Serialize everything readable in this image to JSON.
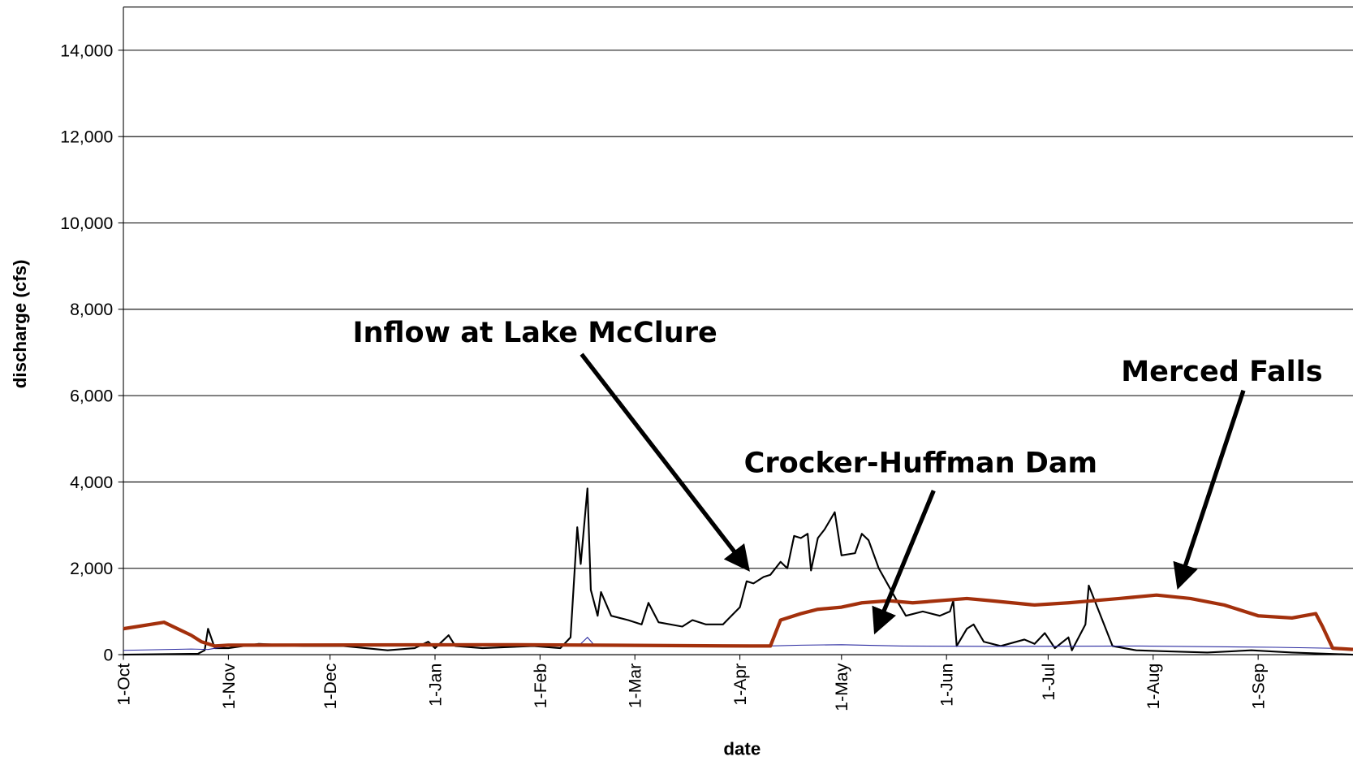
{
  "chart_data": {
    "type": "line",
    "xlabel": "date",
    "ylabel": "discharge (cfs)",
    "xlim": [
      0,
      363
    ],
    "xticks": [
      {
        "value": 0,
        "label": "1-Oct"
      },
      {
        "value": 31,
        "label": "1-Nov"
      },
      {
        "value": 61,
        "label": "1-Dec"
      },
      {
        "value": 92,
        "label": "1-Jan"
      },
      {
        "value": 123,
        "label": "1-Feb"
      },
      {
        "value": 151,
        "label": "1-Mar"
      },
      {
        "value": 182,
        "label": "1-Apr"
      },
      {
        "value": 212,
        "label": "1-May"
      },
      {
        "value": 243,
        "label": "1-Jun"
      },
      {
        "value": 273,
        "label": "1-Jul"
      },
      {
        "value": 304,
        "label": "1-Aug"
      },
      {
        "value": 335,
        "label": "1-Sep"
      }
    ],
    "ylim": [
      0,
      15000
    ],
    "yticks": [
      0,
      {
        "value": 2000,
        "label": "2,000"
      },
      {
        "value": 4000,
        "label": "4,000"
      },
      {
        "value": 6000,
        "label": "6,000"
      },
      {
        "value": 8000,
        "label": "8,000"
      },
      {
        "value": 10000,
        "label": "10,000"
      },
      {
        "value": 12000,
        "label": "12,000"
      },
      {
        "value": 14000,
        "label": "14,000"
      }
    ],
    "grid": true,
    "series": [
      {
        "name": "Inflow at Lake McClure",
        "color": "#000000",
        "width": 2,
        "x": [
          0,
          22,
          24,
          25,
          27,
          31,
          40,
          53,
          65,
          78,
          86,
          90,
          92,
          96,
          98,
          106,
          121,
          129,
          132,
          134,
          135,
          137,
          138,
          140,
          141,
          144,
          149,
          153,
          155,
          158,
          165,
          168,
          172,
          177,
          182,
          184,
          186,
          189,
          191,
          194,
          196,
          198,
          200,
          202,
          203,
          205,
          207,
          210,
          212,
          216,
          218,
          220,
          223,
          228,
          231,
          236,
          241,
          244,
          245,
          246,
          249,
          251,
          254,
          259,
          266,
          269,
          272,
          275,
          279,
          280,
          284,
          285,
          288,
          292,
          299,
          307,
          320,
          333,
          345,
          363
        ],
        "values": [
          0,
          20,
          100,
          600,
          150,
          150,
          250,
          200,
          200,
          100,
          150,
          300,
          150,
          450,
          200,
          150,
          200,
          150,
          400,
          2950,
          2100,
          3850,
          1500,
          900,
          1450,
          900,
          800,
          700,
          1200,
          750,
          650,
          800,
          700,
          700,
          1100,
          1700,
          1650,
          1800,
          1850,
          2150,
          2000,
          2750,
          2700,
          2800,
          1950,
          2700,
          2900,
          3300,
          2300,
          2350,
          2800,
          2650,
          2000,
          1300,
          900,
          1000,
          900,
          1000,
          1250,
          200,
          600,
          700,
          300,
          200,
          350,
          250,
          500,
          150,
          400,
          100,
          700,
          1600,
          1000,
          200,
          100,
          80,
          50,
          100,
          50,
          0
        ]
      },
      {
        "name": "Crocker-Huffman Dam",
        "color": "#2a2aa0",
        "width": 1,
        "x": [
          0,
          20,
          25,
          31,
          100,
          130,
          135,
          137,
          139,
          180,
          185,
          190,
          200,
          212,
          230,
          260,
          300,
          340,
          363
        ],
        "values": [
          100,
          130,
          120,
          200,
          200,
          200,
          250,
          400,
          220,
          200,
          190,
          200,
          220,
          230,
          200,
          190,
          200,
          170,
          140
        ]
      },
      {
        "name": "Merced Falls",
        "color": "#a3300c",
        "width": 4,
        "x": [
          0,
          4,
          12,
          16,
          20,
          23,
          27,
          31,
          116,
          185,
          188,
          191,
          194,
          200,
          205,
          212,
          218,
          226,
          233,
          249,
          256,
          269,
          279,
          294,
          305,
          315,
          325,
          335,
          345,
          352,
          354,
          357,
          363
        ],
        "values": [
          600,
          650,
          750,
          600,
          450,
          300,
          200,
          220,
          230,
          200,
          200,
          200,
          800,
          950,
          1050,
          1100,
          1200,
          1250,
          1200,
          1300,
          1250,
          1150,
          1200,
          1300,
          1380,
          1300,
          1150,
          900,
          850,
          950,
          650,
          150,
          120
        ]
      }
    ]
  }
}
